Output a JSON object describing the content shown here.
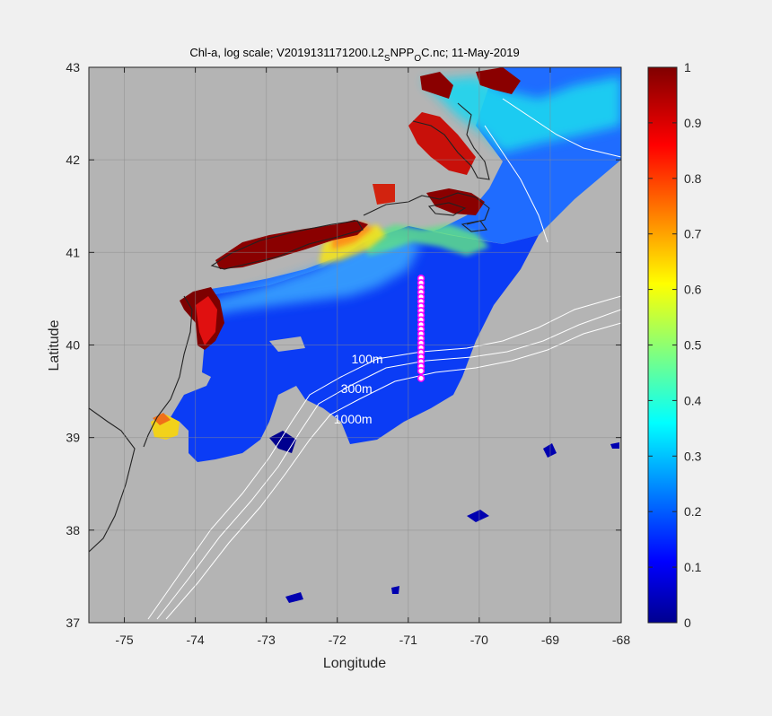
{
  "chart_data": {
    "type": "heatmap",
    "title_parts": {
      "pre": "Chl-a, log scale; V2019131171200.L2",
      "sub1": "S",
      "mid": "NPP",
      "sub2": "O",
      "post": "C.nc; 11-May-2019"
    },
    "xlabel": "Longitude",
    "ylabel": "Latitude",
    "xlim": [
      -75.5,
      -68
    ],
    "ylim": [
      37,
      43
    ],
    "xticks": [
      -75,
      -74,
      -73,
      -72,
      -71,
      -70,
      -69,
      -68
    ],
    "xtick_labels": [
      "-75",
      "-74",
      "-73",
      "-72",
      "-71",
      "-70",
      "-69",
      "-68"
    ],
    "yticks": [
      37,
      38,
      39,
      40,
      41,
      42,
      43
    ],
    "ytick_labels": [
      "37",
      "38",
      "39",
      "40",
      "41",
      "42",
      "43"
    ],
    "grid": true,
    "colorbar": {
      "clim": [
        0,
        1
      ],
      "ticks": [
        0,
        0.1,
        0.2,
        0.3,
        0.4,
        0.5,
        0.6,
        0.7,
        0.8,
        0.9,
        1
      ],
      "tick_labels": [
        "0",
        "0.1",
        "0.2",
        "0.3",
        "0.4",
        "0.5",
        "0.6",
        "0.7",
        "0.8",
        "0.9",
        "1"
      ],
      "colormap": "jet",
      "location": "right"
    },
    "contour_labels": [
      {
        "text": "100m",
        "lon": -71.8,
        "lat": 39.85
      },
      {
        "text": "300m",
        "lon": -71.95,
        "lat": 39.53
      },
      {
        "text": "1000m",
        "lon": -72.05,
        "lat": 39.2
      }
    ],
    "station_points": {
      "lon": [
        -70.82,
        -70.82,
        -70.82,
        -70.82,
        -70.82,
        -70.82,
        -70.82,
        -70.82,
        -70.82,
        -70.82,
        -70.82,
        -70.82,
        -70.82,
        -70.82,
        -70.82,
        -70.82,
        -70.82,
        -70.82,
        -70.82,
        -70.82,
        -70.82,
        -70.82
      ],
      "lat": [
        40.72,
        40.67,
        40.62,
        40.57,
        40.52,
        40.47,
        40.42,
        40.37,
        40.32,
        40.27,
        40.22,
        40.17,
        40.12,
        40.07,
        40.02,
        39.97,
        39.92,
        39.87,
        39.82,
        39.77,
        39.72,
        39.64
      ]
    },
    "colors": {
      "land_nodata": "#b4b4b4",
      "figure_bg": "#f0f0f0",
      "station_color": "#ff00ff"
    }
  }
}
